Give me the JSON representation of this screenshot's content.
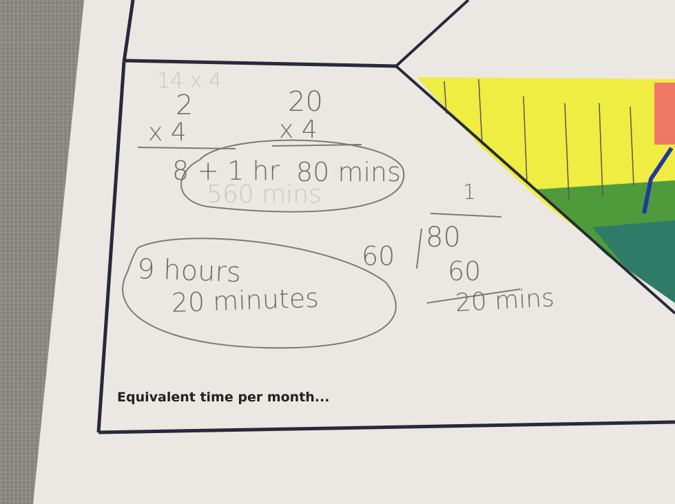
{
  "worksheet": {
    "caption": "Equivalent time per month...",
    "work": {
      "left_multiplication": {
        "top": "2",
        "multiplier": "x 4",
        "result": "8 + 1 hr"
      },
      "right_multiplication": {
        "top": "20",
        "multiplier": "x 4",
        "result": "80 mins"
      },
      "erased_text": [
        "14 x 4",
        "560 mins"
      ],
      "answer_line1": "9 hours",
      "answer_line2": "20 minutes",
      "division": {
        "divisor": "60",
        "dividend": "80",
        "quotient": "1",
        "subtract": "60",
        "remainder": "20 mins"
      }
    },
    "colors": {
      "paper": "#ebe8e4",
      "border": "#262a3a",
      "highlight_yellow": "#f2ee2a",
      "grass_green": "#4a9a3a",
      "teal": "#2f7a66"
    }
  }
}
